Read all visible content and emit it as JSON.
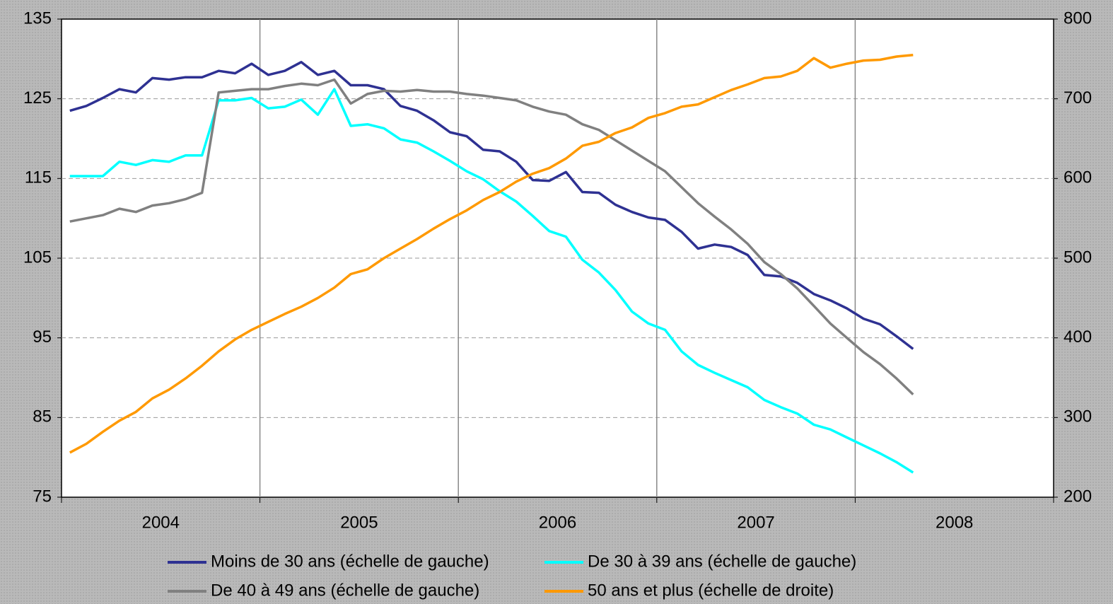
{
  "chart_data": {
    "type": "line",
    "x": [
      2004.042,
      2004.125,
      2004.208,
      2004.292,
      2004.375,
      2004.458,
      2004.542,
      2004.625,
      2004.708,
      2004.792,
      2004.875,
      2004.958,
      2005.042,
      2005.125,
      2005.208,
      2005.292,
      2005.375,
      2005.458,
      2005.542,
      2005.625,
      2005.708,
      2005.792,
      2005.875,
      2005.958,
      2006.042,
      2006.125,
      2006.208,
      2006.292,
      2006.375,
      2006.458,
      2006.542,
      2006.625,
      2006.708,
      2006.792,
      2006.875,
      2006.958,
      2007.042,
      2007.125,
      2007.208,
      2007.292,
      2007.375,
      2007.458,
      2007.542,
      2007.625,
      2007.708,
      2007.792,
      2007.875,
      2007.958,
      2008.042,
      2008.125,
      2008.208,
      2008.292
    ],
    "xlim": [
      2004,
      2009
    ],
    "xticks": [
      {
        "value": 2004.5,
        "label": "2004"
      },
      {
        "value": 2005.5,
        "label": "2005"
      },
      {
        "value": 2006.5,
        "label": "2006"
      },
      {
        "value": 2007.5,
        "label": "2007"
      },
      {
        "value": 2008.5,
        "label": "2008"
      }
    ],
    "ylim": [
      75,
      135
    ],
    "yticks": [
      75,
      85,
      95,
      105,
      115,
      125,
      135
    ],
    "y2lim": [
      200,
      800
    ],
    "y2ticks": [
      200,
      300,
      400,
      500,
      600,
      700,
      800
    ],
    "grid": true,
    "legend": "bottom",
    "series": [
      {
        "name": "Moins de 30 ans (échelle de gauche)",
        "color": "#2e3192",
        "values": [
          123.5,
          124.1,
          125.1,
          126.2,
          125.8,
          127.6,
          127.4,
          127.7,
          127.7,
          128.5,
          128.2,
          129.4,
          128.0,
          128.5,
          129.6,
          128.0,
          128.5,
          126.7,
          126.7,
          126.2,
          124.1,
          123.5,
          122.3,
          120.8,
          120.3,
          118.6,
          118.4,
          117.1,
          114.8,
          114.7,
          115.8,
          113.3,
          113.2,
          111.7,
          110.8,
          110.1,
          109.8,
          108.3,
          106.2,
          106.7,
          106.4,
          105.4,
          102.9,
          102.7,
          101.9,
          100.5,
          99.7,
          98.7,
          97.4,
          96.7,
          95.2,
          93.6
        ]
      },
      {
        "name": "De 30 à 39 ans (échelle de gauche)",
        "color": "#00ffff",
        "values": [
          115.3,
          115.3,
          115.3,
          117.1,
          116.7,
          117.3,
          117.1,
          117.9,
          117.9,
          124.8,
          124.8,
          125.1,
          123.8,
          124.0,
          124.9,
          123.0,
          126.2,
          121.6,
          121.8,
          121.3,
          119.9,
          119.5,
          118.4,
          117.2,
          115.9,
          114.9,
          113.4,
          112.1,
          110.3,
          108.4,
          107.7,
          104.8,
          103.2,
          101.0,
          98.3,
          96.8,
          96.0,
          93.3,
          91.6,
          90.6,
          89.7,
          88.8,
          87.2,
          86.3,
          85.5,
          84.1,
          83.5,
          82.5,
          81.5,
          80.5,
          79.4,
          78.1
        ]
      },
      {
        "name": "De 40 à 49 ans (échelle de gauche)",
        "color": "#808080",
        "values": [
          109.6,
          110.0,
          110.4,
          111.2,
          110.8,
          111.6,
          111.9,
          112.4,
          113.2,
          125.8,
          126.0,
          126.2,
          126.2,
          126.6,
          126.9,
          126.7,
          127.4,
          124.4,
          125.6,
          126.0,
          125.9,
          126.1,
          125.9,
          125.9,
          125.6,
          125.4,
          125.1,
          124.8,
          124.0,
          123.4,
          123.0,
          121.8,
          121.1,
          119.8,
          118.5,
          117.2,
          115.9,
          113.9,
          111.9,
          110.2,
          108.6,
          106.8,
          104.5,
          103.0,
          101.2,
          99.0,
          96.8,
          95.0,
          93.2,
          91.7,
          89.9,
          87.9
        ]
      },
      {
        "name": "50 ans et plus (échelle de droite)",
        "color": "#ff9900",
        "axis": "y2",
        "values": [
          256,
          267,
          282,
          296,
          307,
          324,
          335,
          349,
          365,
          383,
          398,
          410,
          420,
          430,
          439,
          450,
          463,
          480,
          486,
          500,
          512,
          524,
          537,
          549,
          560,
          573,
          583,
          596,
          606,
          613,
          625,
          641,
          646,
          657,
          664,
          676,
          682,
          690,
          693,
          702,
          711,
          718,
          726,
          728,
          735,
          751,
          739,
          744,
          748,
          749,
          753,
          755
        ]
      }
    ]
  }
}
